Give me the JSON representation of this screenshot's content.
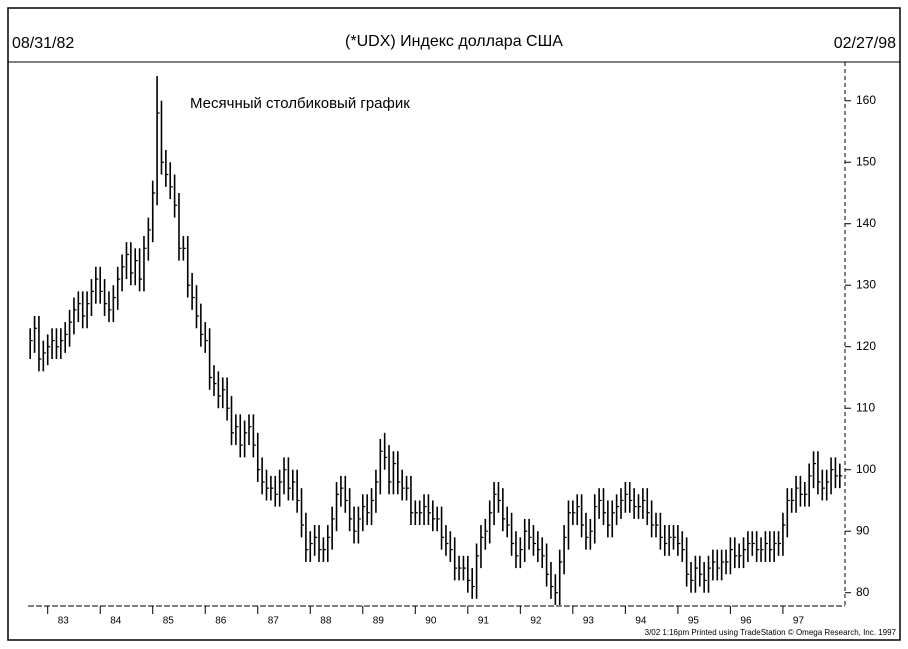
{
  "chart_data": {
    "type": "ohlc",
    "date_start": "08/31/82",
    "title": "(*UDX) Индекс доллара США",
    "date_end": "02/27/98",
    "annotation": "Месячный столбиковый график",
    "footer": "3/02 1:16pm Printed using TradeStation © Omega Research, Inc. 1997",
    "color": "#000000",
    "categories": [
      null,
      null,
      null,
      null,
      "83",
      null,
      null,
      null,
      null,
      null,
      null,
      null,
      null,
      null,
      null,
      null,
      "84",
      null,
      null,
      null,
      null,
      null,
      null,
      null,
      null,
      null,
      null,
      null,
      "85",
      null,
      null,
      null,
      null,
      null,
      null,
      null,
      null,
      null,
      null,
      null,
      "86",
      null,
      null,
      null,
      null,
      null,
      null,
      null,
      null,
      null,
      null,
      null,
      "87",
      null,
      null,
      null,
      null,
      null,
      null,
      null,
      null,
      null,
      null,
      null,
      "88",
      null,
      null,
      null,
      null,
      null,
      null,
      null,
      null,
      null,
      null,
      null,
      "89",
      null,
      null,
      null,
      null,
      null,
      null,
      null,
      null,
      null,
      null,
      null,
      "90",
      null,
      null,
      null,
      null,
      null,
      null,
      null,
      null,
      null,
      null,
      null,
      "91",
      null,
      null,
      null,
      null,
      null,
      null,
      null,
      null,
      null,
      null,
      null,
      "92",
      null,
      null,
      null,
      null,
      null,
      null,
      null,
      null,
      null,
      null,
      null,
      "93",
      null,
      null,
      null,
      null,
      null,
      null,
      null,
      null,
      null,
      null,
      null,
      "94",
      null,
      null,
      null,
      null,
      null,
      null,
      null,
      null,
      null,
      null,
      null,
      "95",
      null,
      null,
      null,
      null,
      null,
      null,
      null,
      null,
      null,
      null,
      null,
      "96",
      null,
      null,
      null,
      null,
      null,
      null,
      null,
      null,
      null,
      null,
      null,
      "97",
      null,
      null,
      null,
      null,
      null,
      null,
      null,
      null,
      null,
      null,
      null,
      null,
      null
    ],
    "high": [
      123,
      125,
      125,
      121,
      122,
      123,
      123,
      123,
      124,
      126,
      128,
      129,
      129,
      129,
      131,
      133,
      133,
      131,
      129,
      130,
      133,
      135,
      137,
      137,
      136,
      136,
      138,
      141,
      147,
      164,
      160,
      152,
      150,
      148,
      145,
      138,
      138,
      132,
      130,
      127,
      124,
      123,
      117,
      116,
      115,
      115,
      112,
      109,
      109,
      108,
      109,
      109,
      106,
      102,
      100,
      99,
      99,
      100,
      102,
      102,
      100,
      100,
      97,
      93,
      90,
      91,
      91,
      89,
      91,
      94,
      98,
      99,
      99,
      97,
      94,
      94,
      96,
      96,
      97,
      100,
      105,
      106,
      104,
      103,
      103,
      100,
      99,
      99,
      95,
      95,
      96,
      96,
      95,
      94,
      94,
      91,
      90,
      89,
      86,
      86,
      86,
      84,
      88,
      91,
      92,
      95,
      98,
      98,
      97,
      94,
      93,
      90,
      89,
      92,
      92,
      91,
      90,
      89,
      88,
      85,
      83,
      87,
      91,
      95,
      95,
      96,
      96,
      93,
      92,
      96,
      97,
      97,
      95,
      95,
      96,
      97,
      98,
      98,
      97,
      96,
      97,
      97,
      95,
      93,
      93,
      91,
      91,
      91,
      91,
      90,
      89,
      85,
      86,
      86,
      85,
      86,
      87,
      87,
      87,
      87,
      89,
      89,
      88,
      89,
      90,
      90,
      90,
      89,
      90,
      90,
      90,
      90,
      93,
      97,
      97,
      99,
      99,
      98,
      101,
      103,
      103,
      100,
      100,
      102,
      102,
      101
    ],
    "low": [
      118,
      119,
      116,
      116,
      117,
      118,
      118,
      118,
      119,
      120,
      122,
      124,
      123,
      123,
      125,
      127,
      127,
      125,
      124,
      124,
      126,
      129,
      131,
      130,
      130,
      129,
      129,
      134,
      137,
      143,
      148,
      146,
      144,
      141,
      134,
      134,
      128,
      126,
      123,
      120,
      119,
      113,
      112,
      110,
      110,
      108,
      104,
      104,
      102,
      102,
      104,
      102,
      98,
      96,
      95,
      95,
      94,
      94,
      96,
      95,
      95,
      93,
      89,
      85,
      85,
      86,
      85,
      85,
      85,
      87,
      90,
      94,
      93,
      90,
      88,
      88,
      90,
      91,
      91,
      93,
      96,
      100,
      96,
      96,
      96,
      95,
      95,
      91,
      91,
      91,
      91,
      91,
      90,
      90,
      87,
      86,
      85,
      82,
      82,
      82,
      80,
      79,
      79,
      84,
      87,
      88,
      91,
      93,
      90,
      89,
      86,
      84,
      84,
      85,
      87,
      86,
      85,
      84,
      81,
      79,
      78,
      78,
      83,
      87,
      91,
      91,
      89,
      87,
      87,
      88,
      92,
      91,
      89,
      89,
      91,
      92,
      93,
      93,
      92,
      92,
      92,
      91,
      89,
      89,
      87,
      86,
      86,
      87,
      86,
      85,
      81,
      80,
      80,
      81,
      80,
      80,
      82,
      82,
      82,
      83,
      83,
      84,
      84,
      84,
      85,
      86,
      85,
      85,
      85,
      85,
      85,
      86,
      86,
      89,
      93,
      93,
      94,
      94,
      94,
      97,
      96,
      95,
      95,
      96,
      97,
      97
    ],
    "close": [
      121,
      123,
      118,
      119,
      120,
      121,
      120,
      121,
      122,
      124,
      126,
      127,
      125,
      127,
      129,
      131,
      129,
      127,
      126,
      128,
      131,
      133,
      135,
      132,
      134,
      131,
      136,
      139,
      145,
      158,
      150,
      148,
      146,
      143,
      136,
      136,
      130,
      128,
      125,
      122,
      121,
      115,
      114,
      112,
      113,
      110,
      106,
      107,
      104,
      106,
      107,
      104,
      100,
      98,
      97,
      97,
      96,
      98,
      100,
      97,
      98,
      95,
      91,
      87,
      88,
      89,
      87,
      87,
      89,
      92,
      96,
      97,
      95,
      92,
      90,
      92,
      94,
      93,
      95,
      98,
      103,
      102,
      98,
      101,
      98,
      97,
      97,
      93,
      93,
      93,
      94,
      93,
      92,
      92,
      89,
      88,
      87,
      84,
      84,
      84,
      82,
      81,
      86,
      89,
      90,
      93,
      96,
      95,
      92,
      91,
      88,
      86,
      87,
      90,
      89,
      88,
      87,
      86,
      83,
      81,
      80,
      85,
      89,
      93,
      93,
      94,
      91,
      89,
      90,
      94,
      95,
      93,
      91,
      93,
      94,
      95,
      96,
      95,
      94,
      94,
      95,
      93,
      91,
      91,
      89,
      88,
      89,
      89,
      88,
      87,
      83,
      82,
      84,
      83,
      82,
      84,
      85,
      84,
      85,
      85,
      87,
      86,
      86,
      87,
      88,
      88,
      87,
      87,
      88,
      87,
      88,
      88,
      91,
      95,
      95,
      97,
      96,
      96,
      99,
      101,
      98,
      97,
      98,
      100,
      99,
      99
    ],
    "ylim": [
      78,
      165
    ],
    "yticks": [
      80,
      90,
      100,
      110,
      120,
      130,
      140,
      150,
      160
    ]
  }
}
